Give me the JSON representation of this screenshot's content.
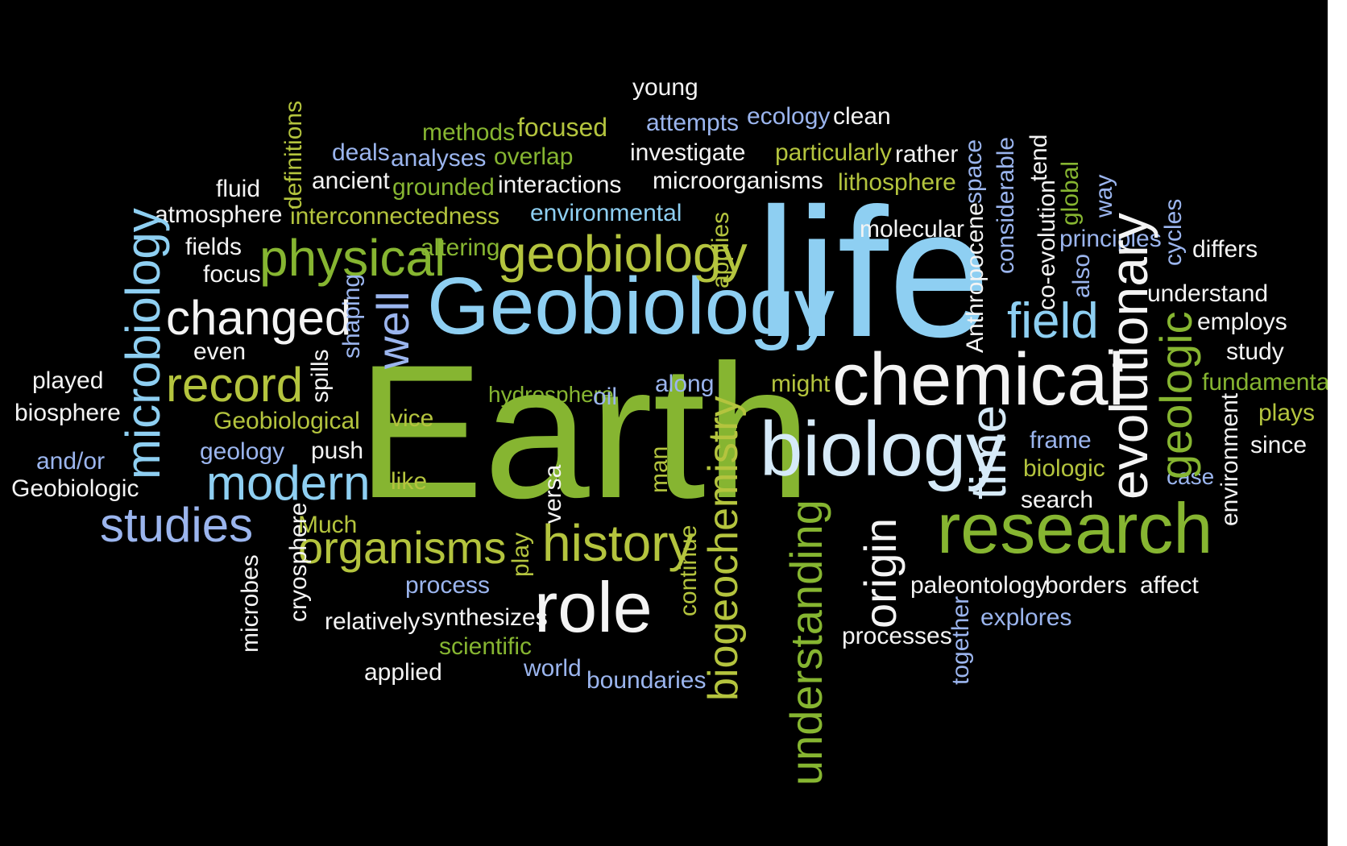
{
  "colors": {
    "background": "#000000",
    "white": "#f4f4f4",
    "light_blue": "#8ecff2",
    "periwinkle": "#9bb5ee",
    "green": "#86b531",
    "yellow_green": "#b4c43e",
    "pale_blue": "#d6eaf8"
  },
  "words": [
    {
      "text": "Earth",
      "color": "green"
    },
    {
      "text": "life",
      "color": "light_blue"
    },
    {
      "text": "Geobiology",
      "color": "light_blue"
    },
    {
      "text": "chemical",
      "color": "white"
    },
    {
      "text": "biology",
      "color": "pale_blue"
    },
    {
      "text": "research",
      "color": "green"
    },
    {
      "text": "role",
      "color": "white"
    },
    {
      "text": "history",
      "color": "yellow_green"
    },
    {
      "text": "organisms",
      "color": "yellow_green"
    },
    {
      "text": "geobiology",
      "color": "yellow_green"
    },
    {
      "text": "physical",
      "color": "green"
    },
    {
      "text": "changed",
      "color": "white"
    },
    {
      "text": "record",
      "color": "yellow_green"
    },
    {
      "text": "modern",
      "color": "light_blue"
    },
    {
      "text": "studies",
      "color": "periwinkle"
    },
    {
      "text": "field",
      "color": "light_blue"
    },
    {
      "text": "time",
      "color": "pale_blue"
    },
    {
      "text": "evolutionary",
      "color": "white"
    },
    {
      "text": "origin",
      "color": "white"
    },
    {
      "text": "understanding",
      "color": "green"
    },
    {
      "text": "biogeochemistry",
      "color": "yellow_green"
    },
    {
      "text": "microbiology",
      "color": "light_blue"
    },
    {
      "text": "well",
      "color": "periwinkle"
    },
    {
      "text": "geologic",
      "color": "green"
    },
    {
      "text": "young",
      "color": "white"
    },
    {
      "text": "attempts",
      "color": "periwinkle"
    },
    {
      "text": "ecology",
      "color": "periwinkle"
    },
    {
      "text": "clean",
      "color": "white"
    },
    {
      "text": "focused",
      "color": "yellow_green"
    },
    {
      "text": "methods",
      "color": "green"
    },
    {
      "text": "deals",
      "color": "periwinkle"
    },
    {
      "text": "analyses",
      "color": "periwinkle"
    },
    {
      "text": "overlap",
      "color": "green"
    },
    {
      "text": "investigate",
      "color": "white"
    },
    {
      "text": "particularly",
      "color": "yellow_green"
    },
    {
      "text": "rather",
      "color": "white"
    },
    {
      "text": "fluid",
      "color": "white"
    },
    {
      "text": "ancient",
      "color": "white"
    },
    {
      "text": "grounded",
      "color": "green"
    },
    {
      "text": "interactions",
      "color": "white"
    },
    {
      "text": "microorganisms",
      "color": "white"
    },
    {
      "text": "lithosphere",
      "color": "yellow_green"
    },
    {
      "text": "atmosphere",
      "color": "white"
    },
    {
      "text": "interconnectedness",
      "color": "yellow_green"
    },
    {
      "text": "environmental",
      "color": "light_blue"
    },
    {
      "text": "molecular",
      "color": "white"
    },
    {
      "text": "fields",
      "color": "white"
    },
    {
      "text": "focus",
      "color": "white"
    },
    {
      "text": "altering",
      "color": "green"
    },
    {
      "text": "principles",
      "color": "periwinkle"
    },
    {
      "text": "differs",
      "color": "white"
    },
    {
      "text": "understand",
      "color": "white"
    },
    {
      "text": "employs",
      "color": "white"
    },
    {
      "text": "study",
      "color": "white"
    },
    {
      "text": "fundamental",
      "color": "green"
    },
    {
      "text": "plays",
      "color": "yellow_green"
    },
    {
      "text": "since",
      "color": "white"
    },
    {
      "text": "case",
      "color": "periwinkle"
    },
    {
      "text": "even",
      "color": "white"
    },
    {
      "text": "played",
      "color": "white"
    },
    {
      "text": "biosphere",
      "color": "white"
    },
    {
      "text": "hydrosphere",
      "color": "green"
    },
    {
      "text": "along",
      "color": "periwinkle"
    },
    {
      "text": "might",
      "color": "yellow_green"
    },
    {
      "text": "oil",
      "color": "periwinkle"
    },
    {
      "text": "Geobiological",
      "color": "yellow_green"
    },
    {
      "text": "vice",
      "color": "yellow_green"
    },
    {
      "text": "geology",
      "color": "periwinkle"
    },
    {
      "text": "push",
      "color": "white"
    },
    {
      "text": "and/or",
      "color": "periwinkle"
    },
    {
      "text": "Geobiologic",
      "color": "white"
    },
    {
      "text": "like",
      "color": "yellow_green"
    },
    {
      "text": "Much",
      "color": "yellow_green"
    },
    {
      "text": "frame",
      "color": "periwinkle"
    },
    {
      "text": "biologic",
      "color": "yellow_green"
    },
    {
      "text": "search",
      "color": "white"
    },
    {
      "text": "process",
      "color": "periwinkle"
    },
    {
      "text": "paleontology",
      "color": "white"
    },
    {
      "text": "borders",
      "color": "white"
    },
    {
      "text": "affect",
      "color": "white"
    },
    {
      "text": "relatively",
      "color": "white"
    },
    {
      "text": "synthesizes",
      "color": "white"
    },
    {
      "text": "explores",
      "color": "periwinkle"
    },
    {
      "text": "processes",
      "color": "white"
    },
    {
      "text": "scientific",
      "color": "green"
    },
    {
      "text": "applied",
      "color": "white"
    },
    {
      "text": "world",
      "color": "periwinkle"
    },
    {
      "text": "boundaries",
      "color": "periwinkle"
    },
    {
      "text": "definitions",
      "color": "yellow_green"
    },
    {
      "text": "space",
      "color": "periwinkle"
    },
    {
      "text": "considerable",
      "color": "periwinkle"
    },
    {
      "text": "tend",
      "color": "white"
    },
    {
      "text": "global",
      "color": "green"
    },
    {
      "text": "way",
      "color": "periwinkle"
    },
    {
      "text": "co-evolution",
      "color": "white"
    },
    {
      "text": "also",
      "color": "periwinkle"
    },
    {
      "text": "cycles",
      "color": "periwinkle"
    },
    {
      "text": "Anthropocene",
      "color": "white"
    },
    {
      "text": "applies",
      "color": "yellow_green"
    },
    {
      "text": "shaping",
      "color": "periwinkle"
    },
    {
      "text": "spills",
      "color": "white"
    },
    {
      "text": "environment",
      "color": "white"
    },
    {
      "text": "man",
      "color": "yellow_green"
    },
    {
      "text": "versa",
      "color": "white"
    },
    {
      "text": "play",
      "color": "yellow_green"
    },
    {
      "text": "continue",
      "color": "yellow_green"
    },
    {
      "text": "cryosphere",
      "color": "white"
    },
    {
      "text": "microbes",
      "color": "white"
    },
    {
      "text": "together",
      "color": "periwinkle"
    }
  ]
}
